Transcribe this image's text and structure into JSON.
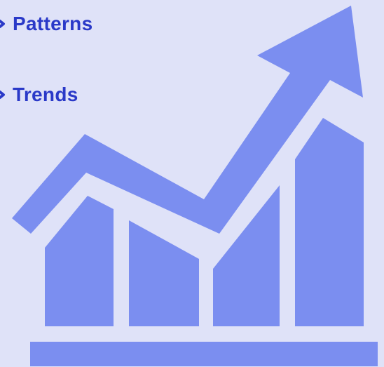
{
  "bullets": [
    {
      "label": "Patterns",
      "icon": "chevron-right-icon"
    },
    {
      "label": "Trends",
      "icon": "chevron-right-icon"
    }
  ],
  "colors": {
    "background": "#dfe2f8",
    "text": "#2a39c8",
    "graphic": "#7b8ef0"
  },
  "graphic": {
    "icon": "growth-chart-icon",
    "bar_count": 4,
    "trend": "upward"
  }
}
